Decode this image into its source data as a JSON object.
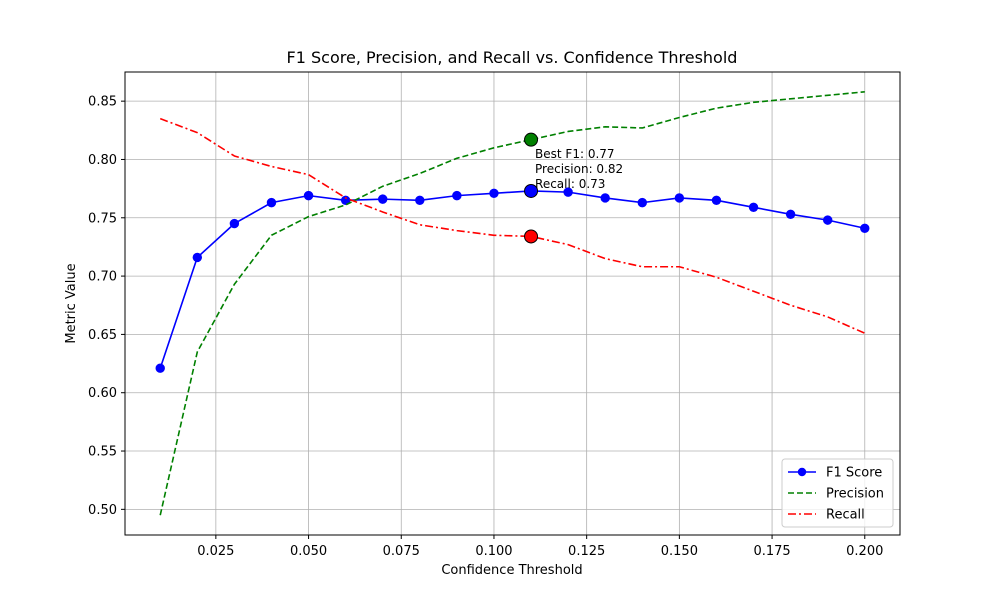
{
  "chart_data": {
    "type": "line",
    "title": "F1 Score, Precision, and Recall vs. Confidence Threshold",
    "xlabel": "Confidence Threshold",
    "ylabel": "Metric Value",
    "xlim": [
      0.0005,
      0.2095
    ],
    "ylim": [
      0.478,
      0.875
    ],
    "x_ticks": [
      0.025,
      0.05,
      0.075,
      0.1,
      0.125,
      0.15,
      0.175,
      0.2
    ],
    "x_tick_labels": [
      "0.025",
      "0.050",
      "0.075",
      "0.100",
      "0.125",
      "0.150",
      "0.175",
      "0.200"
    ],
    "y_ticks": [
      0.5,
      0.55,
      0.6,
      0.65,
      0.7,
      0.75,
      0.8,
      0.85
    ],
    "y_tick_labels": [
      "0.50",
      "0.55",
      "0.60",
      "0.65",
      "0.70",
      "0.75",
      "0.80",
      "0.85"
    ],
    "grid": true,
    "legend_position": "bottom-right",
    "x": [
      0.01,
      0.02,
      0.03,
      0.04,
      0.05,
      0.06,
      0.07,
      0.08,
      0.09,
      0.1,
      0.11,
      0.12,
      0.13,
      0.14,
      0.15,
      0.16,
      0.17,
      0.18,
      0.19,
      0.2
    ],
    "series": [
      {
        "name": "F1 Score",
        "color": "#0000ff",
        "style": "solid",
        "marker": "circle",
        "values": [
          0.621,
          0.716,
          0.745,
          0.763,
          0.769,
          0.765,
          0.766,
          0.765,
          0.769,
          0.771,
          0.773,
          0.772,
          0.767,
          0.763,
          0.767,
          0.765,
          0.759,
          0.753,
          0.748,
          0.741
        ]
      },
      {
        "name": "Precision",
        "color": "#008000",
        "style": "dashed",
        "marker": "none",
        "values": [
          0.495,
          0.635,
          0.693,
          0.735,
          0.751,
          0.761,
          0.777,
          0.788,
          0.801,
          0.81,
          0.817,
          0.824,
          0.828,
          0.827,
          0.836,
          0.844,
          0.849,
          0.852,
          0.855,
          0.858
        ]
      },
      {
        "name": "Recall",
        "color": "#ff0000",
        "style": "dashdot",
        "marker": "none",
        "values": [
          0.835,
          0.823,
          0.803,
          0.794,
          0.787,
          0.767,
          0.755,
          0.744,
          0.739,
          0.735,
          0.734,
          0.727,
          0.715,
          0.708,
          0.708,
          0.699,
          0.687,
          0.675,
          0.665,
          0.651
        ]
      }
    ],
    "highlight": {
      "x": 0.11,
      "points": [
        {
          "series": "F1 Score",
          "y": 0.773,
          "color": "#0000ff"
        },
        {
          "series": "Precision",
          "y": 0.817,
          "color": "#008000"
        },
        {
          "series": "Recall",
          "y": 0.734,
          "color": "#ff0000"
        }
      ],
      "annotation_lines": [
        "Best F1: 0.77",
        "Precision: 0.82",
        "Recall: 0.73"
      ]
    }
  }
}
